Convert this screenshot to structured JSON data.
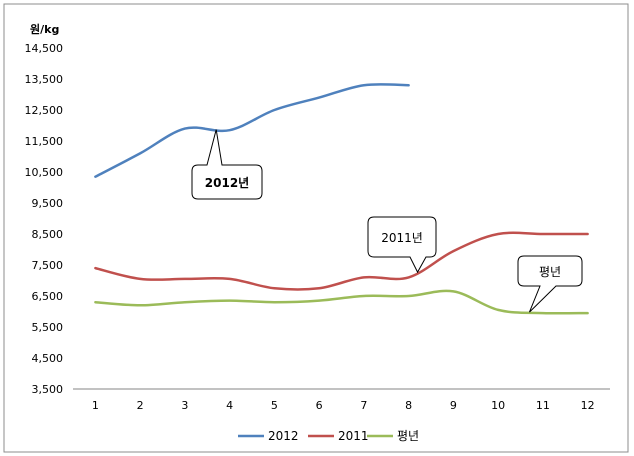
{
  "chart_data": {
    "type": "line",
    "title": "",
    "ylabel": "원/kg",
    "xlabel": "",
    "ylim": [
      3500,
      14500
    ],
    "yticks": [
      3500,
      4500,
      5500,
      6500,
      7500,
      8500,
      9500,
      10500,
      11500,
      12500,
      13500,
      14500
    ],
    "ytick_labels": [
      "3,500",
      "4,500",
      "5,500",
      "6,500",
      "7,500",
      "8,500",
      "9,500",
      "10,500",
      "11,500",
      "12,500",
      "13,500",
      "14,500"
    ],
    "categories": [
      "1",
      "2",
      "3",
      "4",
      "5",
      "6",
      "7",
      "8",
      "9",
      "10",
      "11",
      "12"
    ],
    "grid": false,
    "legend_position": "bottom",
    "series": [
      {
        "name": "2012",
        "color": "#4F81BD",
        "values": [
          10350,
          11100,
          11900,
          11850,
          12500,
          12900,
          13300,
          13300,
          null,
          null,
          null,
          null
        ]
      },
      {
        "name": "2011",
        "color": "#C0504D",
        "values": [
          7400,
          7050,
          7050,
          7050,
          6750,
          6750,
          7100,
          7100,
          7950,
          8500,
          8500,
          8500
        ]
      },
      {
        "name": "평년",
        "color": "#9BBB59",
        "values": [
          6300,
          6200,
          6300,
          6350,
          6300,
          6350,
          6500,
          6500,
          6650,
          6050,
          5950,
          5950
        ]
      }
    ],
    "annotations": [
      {
        "text": "2012년",
        "series": "2012",
        "at_x": 3.7
      },
      {
        "text": "2011년",
        "series": "2011",
        "at_x": 8.2
      },
      {
        "text": "평년",
        "series": "평년",
        "at_x": 10.7
      }
    ]
  }
}
